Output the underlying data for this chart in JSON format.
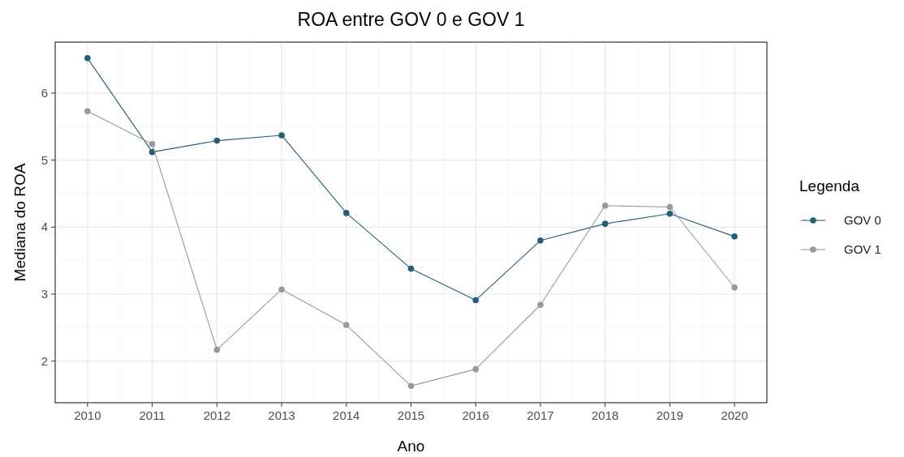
{
  "chart_data": {
    "type": "line",
    "title": "ROA entre GOV 0 e GOV 1",
    "xlabel": "Ano",
    "ylabel": "Mediana do ROA",
    "legend_title": "Legenda",
    "x": [
      2010,
      2011,
      2012,
      2013,
      2014,
      2015,
      2016,
      2017,
      2018,
      2019,
      2020
    ],
    "series": [
      {
        "name": "GOV 0",
        "color": "#22607a",
        "values": [
          6.52,
          5.12,
          5.29,
          5.37,
          4.21,
          3.38,
          2.91,
          3.8,
          4.05,
          4.2,
          3.86
        ]
      },
      {
        "name": "GOV 1",
        "color": "#999999",
        "values": [
          5.73,
          5.24,
          2.17,
          3.07,
          2.54,
          1.63,
          1.88,
          2.84,
          4.32,
          4.3,
          3.1
        ]
      }
    ],
    "xlim": [
      2009.5,
      2020.5
    ],
    "xticks": [
      2010,
      2011,
      2012,
      2013,
      2014,
      2015,
      2016,
      2017,
      2018,
      2019,
      2020
    ],
    "ylim": [
      1.38,
      6.76
    ],
    "yticks": [
      2,
      3,
      4,
      5,
      6
    ],
    "grid": true,
    "legend": "right",
    "marker": "circle",
    "line_style": "solid"
  }
}
